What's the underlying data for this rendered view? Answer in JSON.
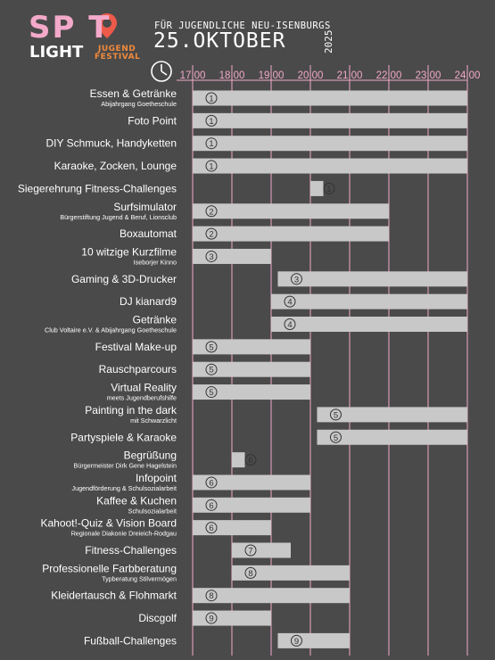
{
  "header": {
    "logo_spot": "SP T",
    "logo_light": "LIGHT",
    "logo_jugend": "JUGEND",
    "logo_festival": "FESTIVAL",
    "subtitle": "FÜR JUGENDLICHE NEU-ISENBURGS",
    "date": "25.OKTOBER",
    "year": "2025",
    "clock_icon": "clock-icon",
    "pin_icon": "location-pin-icon"
  },
  "colors": {
    "background": "#4a4a4a",
    "bar": "#c8c8c8",
    "grid": "#f3a9c9",
    "accent_pink": "#f3a9c9",
    "accent_orange": "#f08a3c"
  },
  "chart_data": {
    "type": "gantt",
    "x_ticks": [
      "17:00",
      "18:00",
      "19:00",
      "20:00",
      "21:00",
      "22:00",
      "23:00",
      "24:00"
    ],
    "xlim": [
      17,
      24
    ],
    "grid": true,
    "rows": [
      {
        "label": "Essen & Getränke",
        "sub": "Abijahrgang Goetheschule",
        "start": 17,
        "end": 24,
        "loc": "1"
      },
      {
        "label": "Foto Point",
        "sub": "",
        "start": 17,
        "end": 24,
        "loc": "1"
      },
      {
        "label": "DIY Schmuck, Handyketten",
        "sub": "",
        "start": 17,
        "end": 24,
        "loc": "1"
      },
      {
        "label": "Karaoke, Zocken, Lounge",
        "sub": "",
        "start": 17,
        "end": 24,
        "loc": "1"
      },
      {
        "label": "Siegerehrung Fitness-Challenges",
        "sub": "",
        "start": 20,
        "end": 20.33,
        "loc": "1"
      },
      {
        "label": "Surfsimulator",
        "sub": "Bürgerstiftung Jugend & Beruf, Lionsclub",
        "start": 17,
        "end": 22,
        "loc": "2"
      },
      {
        "label": "Boxautomat",
        "sub": "",
        "start": 17,
        "end": 22,
        "loc": "2"
      },
      {
        "label": "10 witzige Kurzfilme",
        "sub": "Iseborjer Kinno",
        "start": 17,
        "end": 19,
        "loc": "3"
      },
      {
        "label": "Gaming & 3D-Drucker",
        "sub": "",
        "start": 19.17,
        "end": 24,
        "loc": "3"
      },
      {
        "label": "DJ kianard9",
        "sub": "",
        "start": 19,
        "end": 24,
        "loc": "4"
      },
      {
        "label": "Getränke",
        "sub": "Club Voltaire e.V. & Abijahrgang Goetheschule",
        "start": 19,
        "end": 24,
        "loc": "4"
      },
      {
        "label": "Festival Make-up",
        "sub": "",
        "start": 17,
        "end": 20,
        "loc": "5"
      },
      {
        "label": "Rauschparcours",
        "sub": "",
        "start": 17,
        "end": 20,
        "loc": "5"
      },
      {
        "label": "Virtual Reality",
        "sub": "meets Jugendberufshilfe",
        "start": 17,
        "end": 20,
        "loc": "5"
      },
      {
        "label": "Painting in the dark",
        "sub": "mit Schwarzlicht",
        "start": 20.17,
        "end": 24,
        "loc": "5"
      },
      {
        "label": "Partyspiele & Karaoke",
        "sub": "",
        "start": 20.17,
        "end": 24,
        "loc": "5"
      },
      {
        "label": "Begrüßung",
        "sub": "Bürgermeister Dirk Gene Hagelstein",
        "start": 18,
        "end": 18.33,
        "loc": "6"
      },
      {
        "label": "Infopoint",
        "sub": "Jugendförderung & Schulsozialarbeit",
        "start": 17,
        "end": 20,
        "loc": "6"
      },
      {
        "label": "Kaffee & Kuchen",
        "sub": "Schulsozialarbeit",
        "start": 17,
        "end": 20,
        "loc": "6"
      },
      {
        "label": "Kahoot!-Quiz & Vision Board",
        "sub": "Regionale Diakonie Dreieich-Rodgau",
        "start": 17,
        "end": 19,
        "loc": "6"
      },
      {
        "label": "Fitness-Challenges",
        "sub": "",
        "start": 18,
        "end": 19.5,
        "loc": "7"
      },
      {
        "label": "Professionelle Farbberatung",
        "sub": "Typberatung Stilvermögen",
        "start": 18,
        "end": 21,
        "loc": "8"
      },
      {
        "label": "Kleidertausch & Flohmarkt",
        "sub": "",
        "start": 17,
        "end": 21,
        "loc": "8"
      },
      {
        "label": "Discgolf",
        "sub": "",
        "start": 17,
        "end": 19,
        "loc": "9"
      },
      {
        "label": "Fußball-Challenges",
        "sub": "",
        "start": 19.17,
        "end": 21,
        "loc": "9"
      }
    ]
  }
}
